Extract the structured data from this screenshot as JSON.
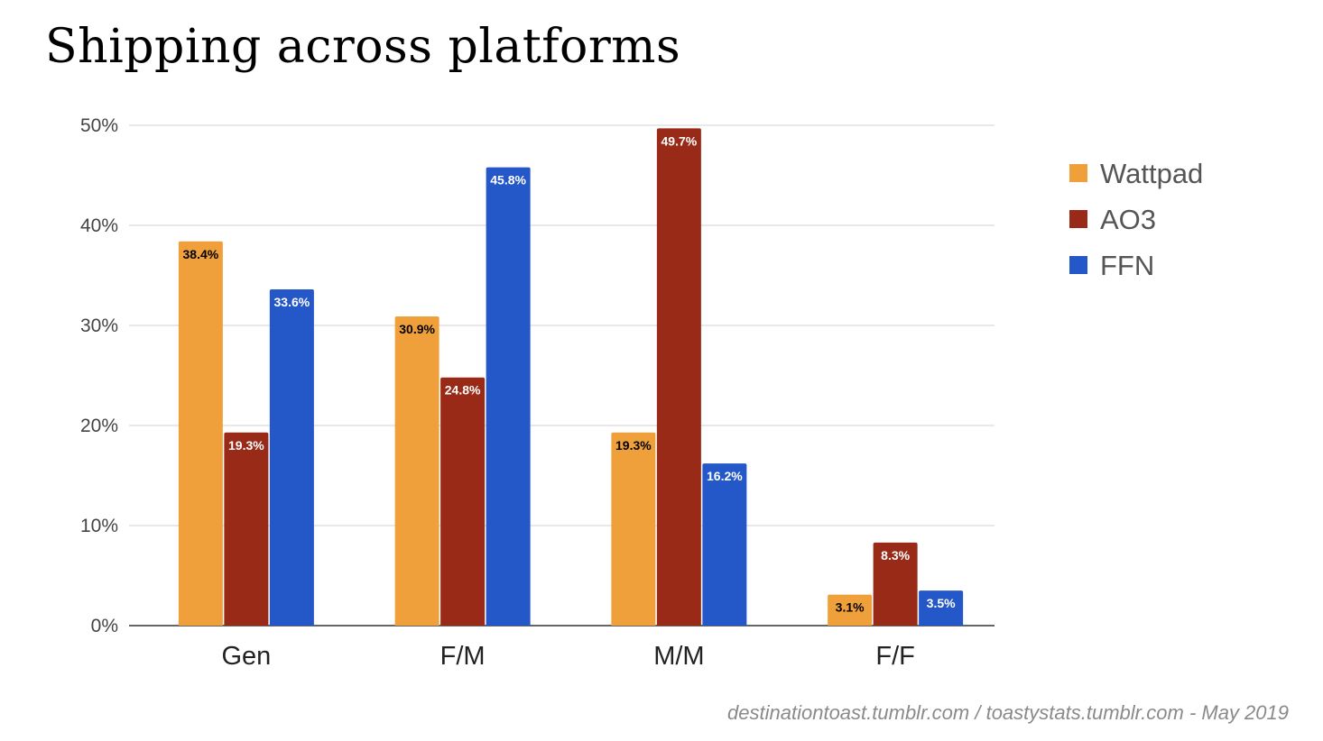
{
  "chart_data": {
    "type": "bar",
    "title": "Shipping across platforms",
    "categories": [
      "Gen",
      "F/M",
      "M/M",
      "F/F"
    ],
    "series": [
      {
        "name": "Wattpad",
        "color": "#f0a03a",
        "label_color": "#000000",
        "values": [
          38.4,
          30.9,
          19.3,
          3.1
        ],
        "labels": [
          "38.4%",
          "30.9%",
          "19.3%",
          "3.1%"
        ]
      },
      {
        "name": "AO3",
        "color": "#992a17",
        "label_color": "#ffffff",
        "values": [
          19.3,
          24.8,
          49.7,
          8.3
        ],
        "labels": [
          "19.3%",
          "24.8%",
          "49.7%",
          "8.3%"
        ]
      },
      {
        "name": "FFN",
        "color": "#2457c8",
        "label_color": "#ffffff",
        "values": [
          33.6,
          45.8,
          16.2,
          3.5
        ],
        "labels": [
          "33.6%",
          "45.8%",
          "16.2%",
          "3.5%"
        ]
      }
    ],
    "ylim": [
      0,
      50
    ],
    "yticks": [
      "0%",
      "10%",
      "20%",
      "30%",
      "40%",
      "50%"
    ],
    "grid": true,
    "legend": "right",
    "xlabel": "",
    "ylabel": ""
  },
  "footer": "destinationtoast.tumblr.com / toastystats.tumblr.com - May 2019"
}
